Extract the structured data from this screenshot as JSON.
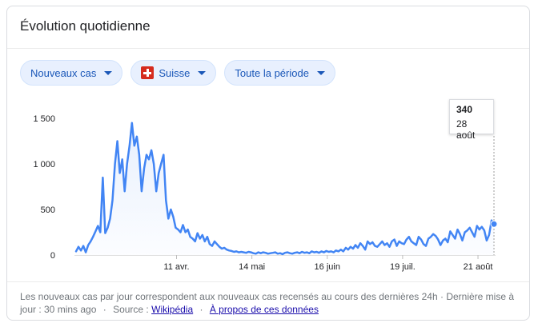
{
  "header": {
    "title": "Évolution quotidienne"
  },
  "filters": {
    "metric": "Nouveaux cas",
    "region": "Suisse",
    "period": "Toute la période"
  },
  "tooltip": {
    "value": "340",
    "date": "28 août"
  },
  "footer": {
    "text": "Les nouveaux cas par jour correspondent aux nouveaux cas recensés au cours des dernières 24h · Dernière mise à jour : 30 mins ago",
    "source_label": "Source :",
    "source_link": "Wikipédia",
    "about_link": "À propos de ces données"
  },
  "colors": {
    "line": "#4285f4",
    "fill": "#e8f0fe",
    "grid": "#e0e0e0",
    "text": "#202124",
    "muted": "#70757a"
  },
  "chart_data": {
    "type": "area",
    "title": "",
    "xlabel": "",
    "ylabel": "",
    "ylim": [
      0,
      1500
    ],
    "yticks": [
      0,
      500,
      1000,
      1500
    ],
    "ytick_labels": [
      "0",
      "500",
      "1 000",
      "1 500"
    ],
    "x_start": "2020-02-27",
    "x_end": "2020-08-28",
    "xticks": [
      {
        "date": "2020-04-11",
        "label": "11 avr."
      },
      {
        "date": "2020-05-14",
        "label": "14 mai"
      },
      {
        "date": "2020-06-16",
        "label": "16 juin"
      },
      {
        "date": "2020-07-19",
        "label": "19 juil."
      },
      {
        "date": "2020-08-21",
        "label": "21 août"
      }
    ],
    "grid": false,
    "highlight": {
      "date": "2020-08-28",
      "value": 340
    },
    "series": [
      {
        "values": [
          40,
          90,
          50,
          100,
          30,
          110,
          150,
          200,
          260,
          320,
          250,
          850,
          240,
          300,
          400,
          600,
          1000,
          1250,
          900,
          1050,
          700,
          1000,
          1200,
          1450,
          1200,
          1300,
          1100,
          700,
          950,
          1100,
          1050,
          1150,
          1000,
          700,
          900,
          1000,
          1100,
          600,
          400,
          500,
          420,
          300,
          280,
          250,
          330,
          250,
          280,
          200,
          180,
          150,
          240,
          180,
          220,
          150,
          200,
          120,
          100,
          150,
          120,
          90,
          70,
          80,
          60,
          50,
          45,
          35,
          40,
          30,
          35,
          30,
          25,
          35,
          30,
          20,
          15,
          30,
          20,
          30,
          25,
          15,
          20,
          25,
          30,
          15,
          20,
          10,
          25,
          30,
          20,
          15,
          25,
          30,
          20,
          35,
          25,
          30,
          20,
          40,
          30,
          35,
          25,
          40,
          30,
          45,
          35,
          40,
          30,
          50,
          40,
          60,
          40,
          80,
          60,
          90,
          70,
          110,
          80,
          130,
          100,
          60,
          150,
          120,
          140,
          100,
          90,
          120,
          150,
          110,
          130,
          90,
          150,
          170,
          100,
          150,
          130,
          120,
          170,
          200,
          150,
          130,
          110,
          200,
          170,
          120,
          100,
          180,
          200,
          230,
          210,
          170,
          110,
          160,
          180,
          140,
          260,
          220,
          180,
          280,
          230,
          160,
          250,
          270,
          300,
          250,
          200,
          320,
          280,
          310,
          270,
          160,
          220,
          380,
          340
        ]
      }
    ]
  }
}
